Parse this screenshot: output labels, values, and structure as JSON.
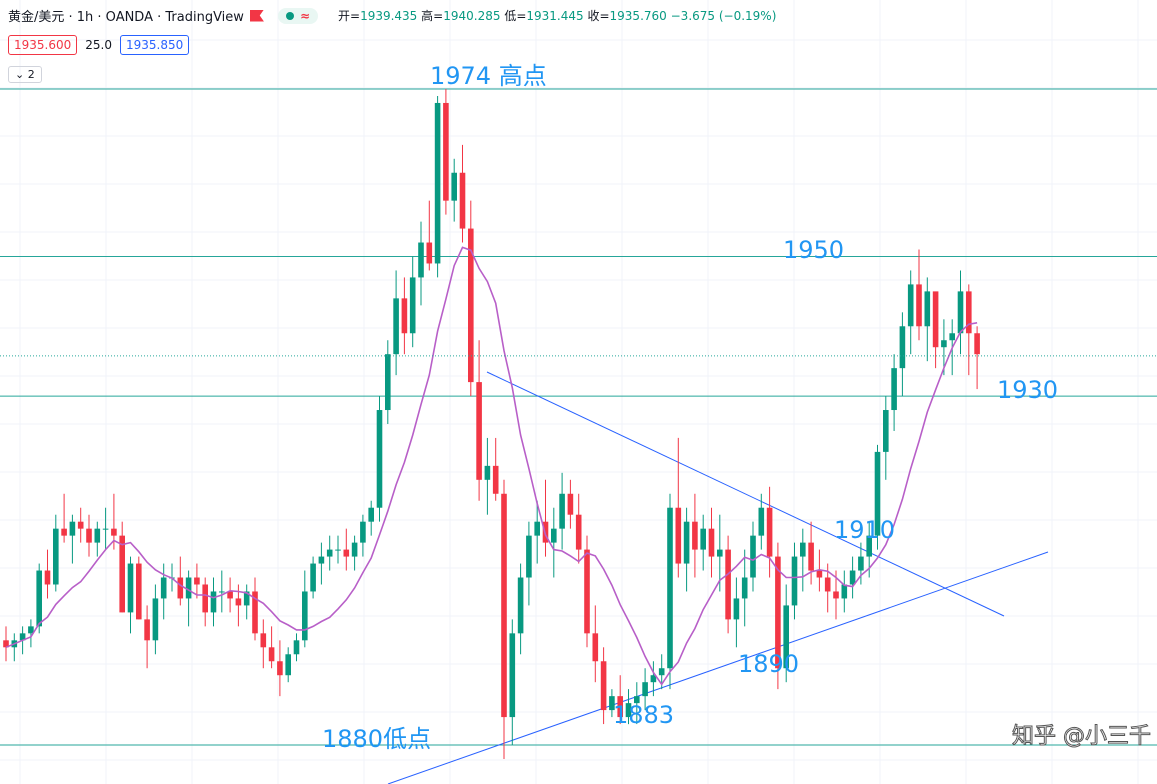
{
  "header": {
    "symbol": "黄金/美元 · 1h · OANDA · TradingView",
    "approx_icon": "≈",
    "open_label": "开=",
    "open": "1939.435",
    "high_label": "高=",
    "high": "1940.285",
    "low_label": "低=",
    "low": "1931.445",
    "close_label": "收=",
    "close": "1935.760",
    "change": "−3.675 (−0.19%)"
  },
  "trade": {
    "sell": "1935.600",
    "spread": "25.0",
    "buy": "1935.850"
  },
  "indicators_toggle": "2",
  "annotations": {
    "high_1974": "1974 高点",
    "level_1950": "1950",
    "level_1930": "1930",
    "level_1910": "1910",
    "level_1890": "1890",
    "level_1883": "1883",
    "low_1880": "1880低点"
  },
  "watermark": "知乎 @小三千",
  "colors": {
    "up": "#089981",
    "down": "#f23645",
    "ma": "#b85fc8",
    "hline": "#26a69a",
    "trendline": "#2962ff",
    "text": "#2196f3"
  },
  "chart_data": {
    "type": "candlestick",
    "timeframe": "1h",
    "ylim": [
      1872,
      1980
    ],
    "horizontal_levels": [
      1974,
      1950,
      1930,
      1880
    ],
    "current_price": 1935.76,
    "candles": [
      [
        1895,
        1897,
        1892,
        1894
      ],
      [
        1894,
        1896,
        1892,
        1895
      ],
      [
        1895,
        1897,
        1893,
        1896
      ],
      [
        1896,
        1898,
        1894,
        1897
      ],
      [
        1897,
        1906,
        1896,
        1905
      ],
      [
        1905,
        1908,
        1901,
        1903
      ],
      [
        1903,
        1913,
        1902,
        1911
      ],
      [
        1911,
        1916,
        1909,
        1910
      ],
      [
        1910,
        1913,
        1906,
        1912
      ],
      [
        1912,
        1914,
        1909,
        1911
      ],
      [
        1911,
        1913,
        1907,
        1909
      ],
      [
        1909,
        1912,
        1907,
        1911
      ],
      [
        1911,
        1914,
        1908,
        1911
      ],
      [
        1911,
        1916,
        1908,
        1910
      ],
      [
        1910,
        1912,
        1899,
        1899
      ],
      [
        1899,
        1907,
        1896,
        1906
      ],
      [
        1906,
        1907,
        1898,
        1898
      ],
      [
        1898,
        1900,
        1891,
        1895
      ],
      [
        1895,
        1903,
        1893,
        1901
      ],
      [
        1901,
        1906,
        1898,
        1904
      ],
      [
        1904,
        1906,
        1902,
        1904
      ],
      [
        1904,
        1907,
        1900,
        1901
      ],
      [
        1901,
        1905,
        1897,
        1904
      ],
      [
        1904,
        1906,
        1901,
        1903
      ],
      [
        1903,
        1904,
        1897,
        1899
      ],
      [
        1899,
        1904,
        1897,
        1902
      ],
      [
        1902,
        1905,
        1899,
        1902
      ],
      [
        1902,
        1904,
        1899,
        1901
      ],
      [
        1901,
        1903,
        1897,
        1900
      ],
      [
        1900,
        1903,
        1898,
        1902
      ],
      [
        1902,
        1904,
        1895,
        1896
      ],
      [
        1896,
        1898,
        1891,
        1894
      ],
      [
        1894,
        1897,
        1891,
        1892
      ],
      [
        1892,
        1895,
        1887,
        1890
      ],
      [
        1890,
        1894,
        1889,
        1893
      ],
      [
        1893,
        1896,
        1892,
        1895
      ],
      [
        1895,
        1905,
        1894,
        1902
      ],
      [
        1902,
        1907,
        1901,
        1906
      ],
      [
        1906,
        1909,
        1903,
        1907
      ],
      [
        1907,
        1910,
        1905,
        1908
      ],
      [
        1908,
        1910,
        1906,
        1908
      ],
      [
        1908,
        1911,
        1905,
        1907
      ],
      [
        1907,
        1910,
        1905,
        1909
      ],
      [
        1909,
        1913,
        1907,
        1912
      ],
      [
        1912,
        1915,
        1910,
        1914
      ],
      [
        1914,
        1930,
        1912,
        1928
      ],
      [
        1928,
        1938,
        1926,
        1936
      ],
      [
        1936,
        1948,
        1933,
        1944
      ],
      [
        1944,
        1947,
        1936,
        1939
      ],
      [
        1939,
        1950,
        1937,
        1947
      ],
      [
        1947,
        1955,
        1943,
        1952
      ],
      [
        1952,
        1958,
        1948,
        1949
      ],
      [
        1949,
        1973,
        1947,
        1972
      ],
      [
        1972,
        1974,
        1956,
        1958
      ],
      [
        1958,
        1964,
        1955,
        1962
      ],
      [
        1962,
        1966,
        1952,
        1954
      ],
      [
        1954,
        1958,
        1930,
        1932
      ],
      [
        1932,
        1938,
        1915,
        1918
      ],
      [
        1918,
        1924,
        1913,
        1920
      ],
      [
        1920,
        1924,
        1915,
        1916
      ],
      [
        1916,
        1918,
        1878,
        1884
      ],
      [
        1884,
        1898,
        1880,
        1896
      ],
      [
        1896,
        1906,
        1893,
        1904
      ],
      [
        1904,
        1912,
        1900,
        1910
      ],
      [
        1910,
        1915,
        1906,
        1912
      ],
      [
        1912,
        1918,
        1907,
        1909
      ],
      [
        1909,
        1914,
        1904,
        1911
      ],
      [
        1911,
        1919,
        1908,
        1916
      ],
      [
        1916,
        1918,
        1911,
        1913
      ],
      [
        1913,
        1916,
        1906,
        1908
      ],
      [
        1908,
        1910,
        1894,
        1896
      ],
      [
        1896,
        1900,
        1889,
        1892
      ],
      [
        1892,
        1894,
        1883,
        1885
      ],
      [
        1885,
        1888,
        1884,
        1887
      ],
      [
        1887,
        1890,
        1883,
        1884
      ],
      [
        1884,
        1888,
        1883,
        1886
      ],
      [
        1886,
        1889,
        1883,
        1887
      ],
      [
        1887,
        1891,
        1885,
        1889
      ],
      [
        1889,
        1892,
        1887,
        1890
      ],
      [
        1890,
        1893,
        1888,
        1891
      ],
      [
        1891,
        1916,
        1888,
        1914
      ],
      [
        1914,
        1924,
        1904,
        1906
      ],
      [
        1906,
        1914,
        1902,
        1912
      ],
      [
        1912,
        1916,
        1904,
        1908
      ],
      [
        1908,
        1913,
        1905,
        1911
      ],
      [
        1911,
        1914,
        1904,
        1907
      ],
      [
        1907,
        1913,
        1902,
        1908
      ],
      [
        1908,
        1910,
        1896,
        1898
      ],
      [
        1898,
        1904,
        1894,
        1901
      ],
      [
        1901,
        1908,
        1897,
        1904
      ],
      [
        1904,
        1912,
        1902,
        1910
      ],
      [
        1910,
        1916,
        1908,
        1914
      ],
      [
        1914,
        1917,
        1904,
        1907
      ],
      [
        1907,
        1909,
        1888,
        1891
      ],
      [
        1891,
        1903,
        1889,
        1900
      ],
      [
        1900,
        1909,
        1898,
        1907
      ],
      [
        1907,
        1911,
        1902,
        1909
      ],
      [
        1909,
        1912,
        1903,
        1905
      ],
      [
        1905,
        1908,
        1902,
        1904
      ],
      [
        1904,
        1906,
        1899,
        1902
      ],
      [
        1902,
        1905,
        1898,
        1901
      ],
      [
        1901,
        1905,
        1899,
        1903
      ],
      [
        1903,
        1907,
        1901,
        1905
      ],
      [
        1905,
        1909,
        1903,
        1907
      ],
      [
        1907,
        1912,
        1904,
        1910
      ],
      [
        1910,
        1923,
        1908,
        1922
      ],
      [
        1922,
        1930,
        1918,
        1928
      ],
      [
        1928,
        1936,
        1925,
        1934
      ],
      [
        1934,
        1942,
        1930,
        1940
      ],
      [
        1940,
        1948,
        1936,
        1946
      ],
      [
        1946,
        1951,
        1938,
        1940
      ],
      [
        1940,
        1947,
        1935,
        1945
      ],
      [
        1945,
        1944,
        1934,
        1937
      ],
      [
        1937,
        1941,
        1933,
        1938
      ],
      [
        1938,
        1941,
        1933,
        1939
      ],
      [
        1939,
        1948,
        1936,
        1945
      ],
      [
        1945,
        1946,
        1933,
        1939
      ],
      [
        1939,
        1940,
        1931,
        1936
      ]
    ]
  }
}
